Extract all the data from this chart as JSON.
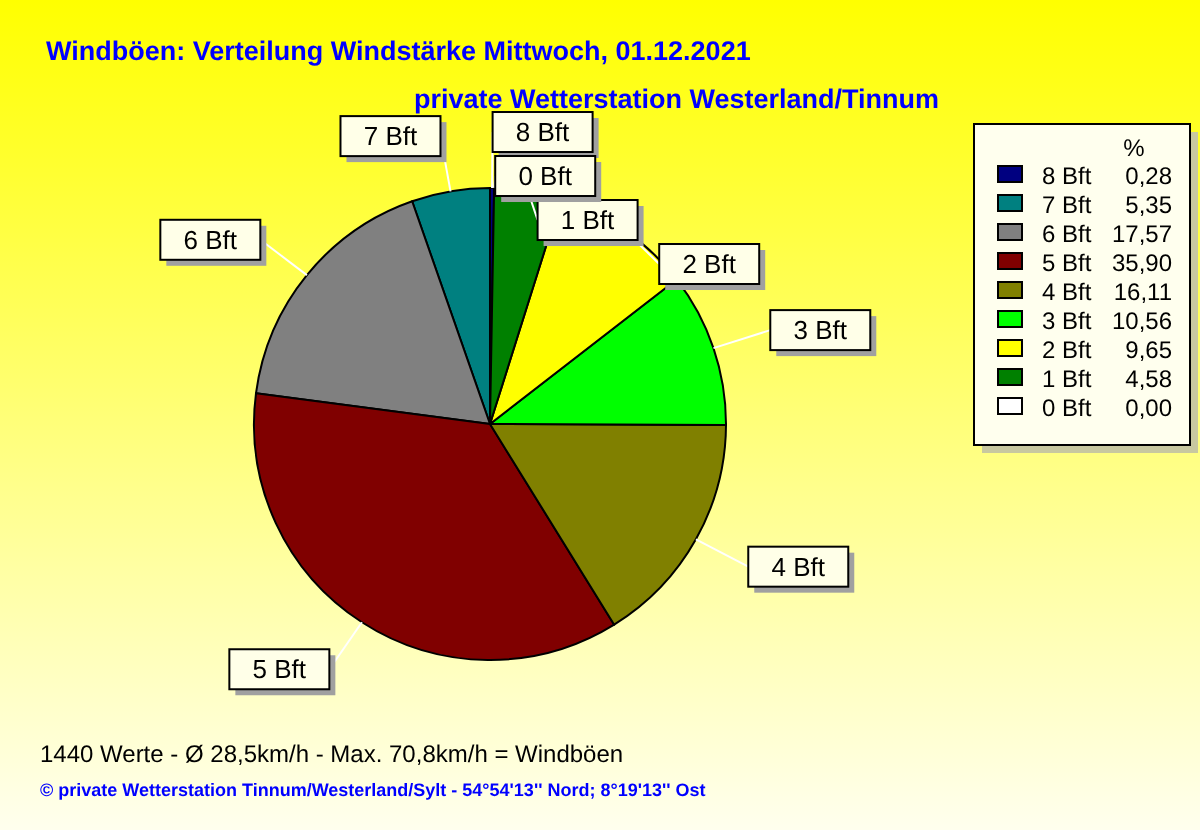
{
  "chart_data": {
    "type": "pie",
    "title": "Windböen: Verteilung Windstärke  Mittwoch, 01.12.2021",
    "subtitle": "private Wetterstation Westerland/Tinnum",
    "legend_title": "%",
    "legend": "right",
    "categories": [
      "8 Bft",
      "7 Bft",
      "6 Bft",
      "5 Bft",
      "4 Bft",
      "3 Bft",
      "2 Bft",
      "1 Bft",
      "0 Bft"
    ],
    "values": [
      0.28,
      5.35,
      17.57,
      35.9,
      16.11,
      10.56,
      9.65,
      4.58,
      0
    ],
    "colors": [
      "#000080",
      "#008080",
      "#808080",
      "#800000",
      "#808000",
      "#00ff00",
      "#ffff00",
      "#008000",
      "#ffffff"
    ],
    "value_labels": [
      "0,28",
      "5,35",
      "17,57",
      "35,90",
      "16,11",
      "10,56",
      "9,65",
      "4,58",
      "0,00"
    ],
    "annotations": [
      "1440 Werte   -   Ø 28,5km/h  -  Max. 70,8km/h = Windböen",
      "© private Wetterstation Tinnum/Westerland/Sylt   -   54°54'13'' Nord; 8°19'13'' Ost"
    ]
  }
}
